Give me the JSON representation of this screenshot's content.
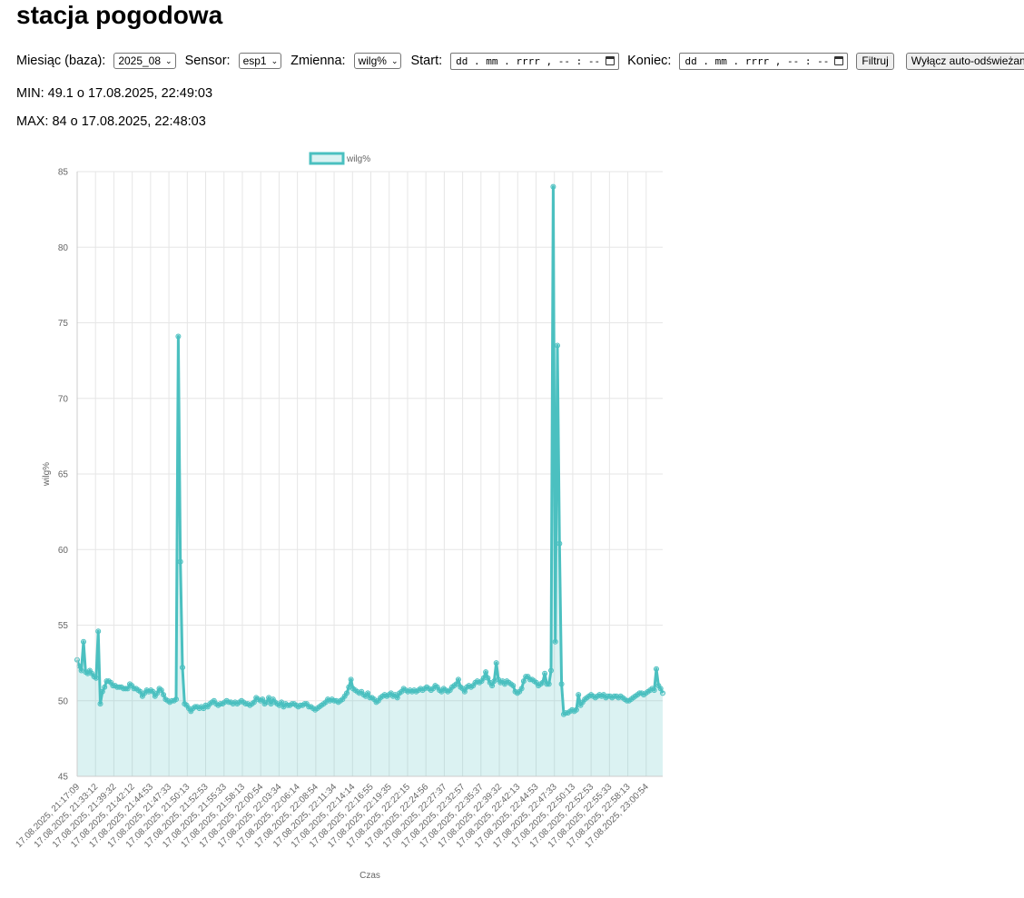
{
  "page": {
    "title": "stacja pogodowa"
  },
  "filters": {
    "month_label": "Miesiąc (baza):",
    "month_value": "2025_08",
    "sensor_label": "Sensor:",
    "sensor_value": "esp1",
    "variable_label": "Zmienna:",
    "variable_value": "wilg%",
    "start_label": "Start:",
    "start_placeholder": "dd . mm . rrrr ,  -- : --",
    "end_label": "Koniec:",
    "end_placeholder": "dd . mm . rrrr ,  -- : --",
    "filter_button": "Filtruj",
    "autorefresh_button": "Wyłącz auto-odświeżanie"
  },
  "stats": {
    "min": "MIN: 49.1 o 17.08.2025, 22:49:03",
    "max": "MAX: 84 o 17.08.2025, 22:48:03"
  },
  "chart_data": {
    "type": "area",
    "xlabel": "Czas",
    "ylabel": "wilg%",
    "ylim": [
      45,
      85
    ],
    "yticks": [
      45,
      50,
      55,
      60,
      65,
      70,
      75,
      80,
      85
    ],
    "grid": true,
    "legend": "top",
    "series": [
      {
        "name": "wilg%",
        "color": "#4bc0c0",
        "fill": "rgba(75,192,192,0.2)",
        "values": [
          52.7,
          52.3,
          52.0,
          53.9,
          51.9,
          51.8,
          52.0,
          51.8,
          51.6,
          51.5,
          54.6,
          49.8,
          50.6,
          50.9,
          51.3,
          51.3,
          51.2,
          51.0,
          51.0,
          50.9,
          50.9,
          50.9,
          50.8,
          50.8,
          50.8,
          51.1,
          51.0,
          50.8,
          50.8,
          50.7,
          50.6,
          50.3,
          50.5,
          50.7,
          50.6,
          50.7,
          50.6,
          50.3,
          50.5,
          50.8,
          50.7,
          50.4,
          50.1,
          50.0,
          49.9,
          50.0,
          50.0,
          50.1,
          74.1,
          59.2,
          52.2,
          49.8,
          49.7,
          49.5,
          49.3,
          49.5,
          49.6,
          49.6,
          49.5,
          49.6,
          49.5,
          49.7,
          49.6,
          49.8,
          49.9,
          50.0,
          49.8,
          49.7,
          49.8,
          49.8,
          49.9,
          50.0,
          49.9,
          49.9,
          49.8,
          49.9,
          49.8,
          49.9,
          50.0,
          49.9,
          49.8,
          49.8,
          49.7,
          49.8,
          49.9,
          50.2,
          50.1,
          50.0,
          50.1,
          49.8,
          49.9,
          50.2,
          49.8,
          50.1,
          49.9,
          49.8,
          49.7,
          49.9,
          49.6,
          49.8,
          49.7,
          49.7,
          49.8,
          49.8,
          49.7,
          49.6,
          49.7,
          49.7,
          49.8,
          49.8,
          49.6,
          49.6,
          49.5,
          49.4,
          49.5,
          49.6,
          49.7,
          49.8,
          49.9,
          50.1,
          50.0,
          50.1,
          50.0,
          50.0,
          49.9,
          50.0,
          50.1,
          50.3,
          50.5,
          50.9,
          51.4,
          50.8,
          50.7,
          50.6,
          50.5,
          50.6,
          50.4,
          50.3,
          50.5,
          50.2,
          50.2,
          50.1,
          49.9,
          50.0,
          50.2,
          50.3,
          50.4,
          50.3,
          50.4,
          50.5,
          50.3,
          50.4,
          50.2,
          50.5,
          50.6,
          50.8,
          50.7,
          50.6,
          50.7,
          50.6,
          50.7,
          50.6,
          50.7,
          50.8,
          50.7,
          50.8,
          50.9,
          50.8,
          50.7,
          50.8,
          51.0,
          50.9,
          50.7,
          50.6,
          50.8,
          50.7,
          50.6,
          50.7,
          50.9,
          51.0,
          51.1,
          51.4,
          50.9,
          50.8,
          50.6,
          50.9,
          51.0,
          50.9,
          51.0,
          51.2,
          51.3,
          51.2,
          51.3,
          51.5,
          51.9,
          51.5,
          51.2,
          51.0,
          51.3,
          52.5,
          51.4,
          51.2,
          51.3,
          51.1,
          51.3,
          51.2,
          51.1,
          51.0,
          50.6,
          50.5,
          50.6,
          50.8,
          51.3,
          51.6,
          51.6,
          51.4,
          51.4,
          51.3,
          51.2,
          51.0,
          51.1,
          51.2,
          51.8,
          51.1,
          51.1,
          52.0,
          84.0,
          53.9,
          73.5,
          60.4,
          51.1,
          49.1,
          49.2,
          49.2,
          49.3,
          49.4,
          49.3,
          49.4,
          50.4,
          49.7,
          49.9,
          50.1,
          50.2,
          50.3,
          50.4,
          50.3,
          50.2,
          50.3,
          50.4,
          50.3,
          50.4,
          50.2,
          50.3,
          50.3,
          50.2,
          50.3,
          50.3,
          50.2,
          50.3,
          50.2,
          50.1,
          50.0,
          50.0,
          50.1,
          50.2,
          50.3,
          50.4,
          50.5,
          50.5,
          50.4,
          50.5,
          50.6,
          50.7,
          50.8,
          50.7,
          52.1,
          51.0,
          50.8,
          50.5
        ],
        "categories": [
          "17.08.2025, 21:17:09",
          "17.08.2025, 21:33:12",
          "17.08.2025, 21:39:32",
          "17.08.2025, 21:42:12",
          "17.08.2025, 21:44:53",
          "17.08.2025, 21:47:33",
          "17.08.2025, 21:50:13",
          "17.08.2025, 21:52:53",
          "17.08.2025, 21:55:33",
          "17.08.2025, 21:58:13",
          "17.08.2025, 22:00:54",
          "17.08.2025, 22:03:34",
          "17.08.2025, 22:06:14",
          "17.08.2025, 22:08:54",
          "17.08.2025, 22:11:34",
          "17.08.2025, 22:14:14",
          "17.08.2025, 22:16:55",
          "17.08.2025, 22:19:35",
          "17.08.2025, 22:22:15",
          "17.08.2025, 22:24:56",
          "17.08.2025, 22:27:37",
          "17.08.2025, 22:32:57",
          "17.08.2025, 22:35:37",
          "17.08.2025, 22:39:32",
          "17.08.2025, 22:42:13",
          "17.08.2025, 22:44:53",
          "17.08.2025, 22:47:33",
          "17.08.2025, 22:50:13",
          "17.08.2025, 22:52:53",
          "17.08.2025, 22:55:33",
          "17.08.2025, 22:58:13",
          "17.08.2025, 23:00:54"
        ]
      }
    ]
  }
}
